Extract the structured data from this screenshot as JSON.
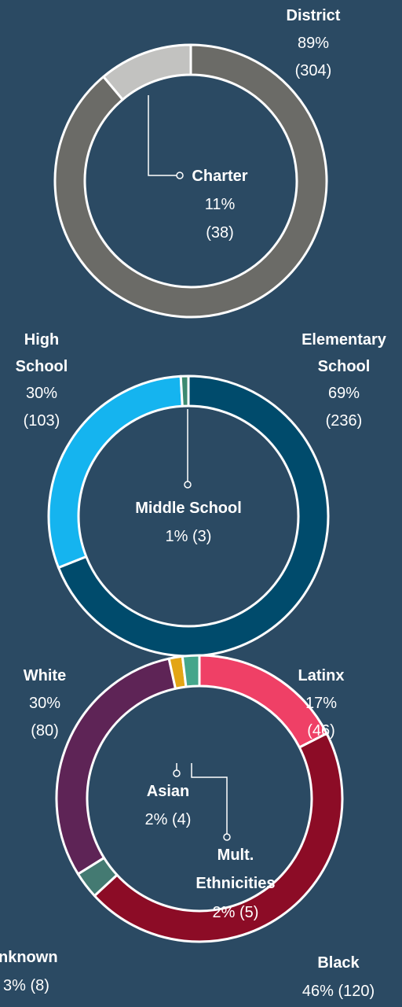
{
  "colors": {
    "background": "#2b4a63",
    "ring_border": "#ffffff",
    "leader": "#ffffff"
  },
  "chart_data": [
    {
      "type": "pie",
      "variant": "donut",
      "categories": [
        "District",
        "Charter"
      ],
      "values": [
        304,
        38
      ],
      "percents": [
        "89%",
        "11%"
      ],
      "colors": [
        "#6b6b67",
        "#c2c2c0"
      ],
      "labels": {
        "District": {
          "name": "District",
          "pct": "89%",
          "count": "(304)"
        },
        "Charter": {
          "name": "Charter",
          "pct": "11%",
          "count": "(38)"
        }
      }
    },
    {
      "type": "pie",
      "variant": "donut",
      "categories": [
        "Elementary School",
        "High School",
        "Middle School"
      ],
      "values": [
        236,
        103,
        3
      ],
      "percents": [
        "69%",
        "30%",
        "1%"
      ],
      "colors": [
        "#004b6c",
        "#15b4ef",
        "#3d8a70"
      ],
      "labels": {
        "Elementary": {
          "name1": "Elementary",
          "name2": "School",
          "pct": "69%",
          "count": "(236)"
        },
        "High": {
          "name1": "High",
          "name2": "School",
          "pct": "30%",
          "count": "(103)"
        },
        "Middle": {
          "name": "Middle School",
          "pct_count": "1% (3)"
        }
      }
    },
    {
      "type": "pie",
      "variant": "donut",
      "categories": [
        "Latinx",
        "Black",
        "Unknown",
        "White",
        "Asian",
        "Mult. Ethnicities"
      ],
      "values": [
        46,
        120,
        8,
        80,
        4,
        5
      ],
      "percents": [
        "17%",
        "46%",
        "3%",
        "30%",
        "2%",
        "2%"
      ],
      "colors": [
        "#ef4066",
        "#8c0c26",
        "#447a72",
        "#5e2456",
        "#e3a515",
        "#44a68b"
      ],
      "labels": {
        "Latinx": {
          "name": "Latinx",
          "pct": "17%",
          "count": "(46)"
        },
        "White": {
          "name": "White",
          "pct": "30%",
          "count": "(80)"
        },
        "Asian": {
          "name": "Asian",
          "pct_count": "2% (4)"
        },
        "Mult": {
          "name1": "Mult.",
          "name2": "Ethnicities",
          "pct_count": "2% (5)"
        },
        "Unknown": {
          "name": "nknown",
          "pct_count": "3% (8)"
        },
        "Black": {
          "name": "Black",
          "pct_count": "46% (120)"
        }
      }
    }
  ]
}
